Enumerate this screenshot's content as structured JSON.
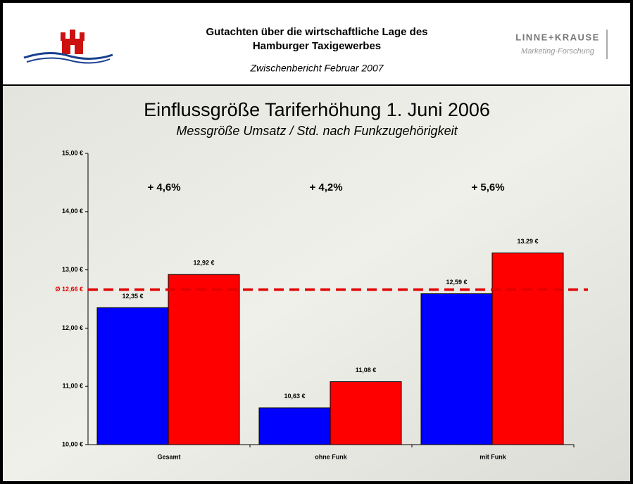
{
  "header": {
    "title_lines": [
      "Gutachten über die wirtschaftliche Lage des",
      "Hamburger Taxigewerbes"
    ],
    "subtitle": "Zwischenbericht Februar 2007",
    "logo_title": "LINNE+KRAUSE",
    "logo_subtitle": "Marketing·Forschung"
  },
  "chart_data": {
    "type": "bar",
    "title": "Einflussgröße Tariferhöhung 1. Juni 2006",
    "subtitle": "Messgröße Umsatz / Std. nach Funkzugehörigkeit",
    "categories": [
      "Gesamt",
      "ohne Funk",
      "mit Funk"
    ],
    "series": [
      {
        "color": "#0000ff",
        "values": [
          12.35,
          10.63,
          12.59
        ],
        "value_labels": [
          "12,35 €",
          "10,63 €",
          "12,59 €"
        ]
      },
      {
        "color": "#ff0000",
        "values": [
          12.92,
          11.08,
          13.29
        ],
        "value_labels": [
          "12,92 €",
          "11,08 €",
          "13.29 €"
        ]
      }
    ],
    "annotations": [
      "+ 4,6%",
      "+ 4,2%",
      "+ 5,6%"
    ],
    "reference_line": {
      "value": 12.66,
      "label": "Ø 12,66 €",
      "color": "#e00000"
    },
    "ylim": [
      10,
      15
    ],
    "yticks": [
      {
        "value": 10,
        "label": "10,00 €"
      },
      {
        "value": 11,
        "label": "11,00 €"
      },
      {
        "value": 12,
        "label": "12,00 €"
      },
      {
        "value": 13,
        "label": "13,00 €"
      },
      {
        "value": 14,
        "label": "14,00 €"
      },
      {
        "value": 15,
        "label": "15,00 €"
      }
    ]
  }
}
